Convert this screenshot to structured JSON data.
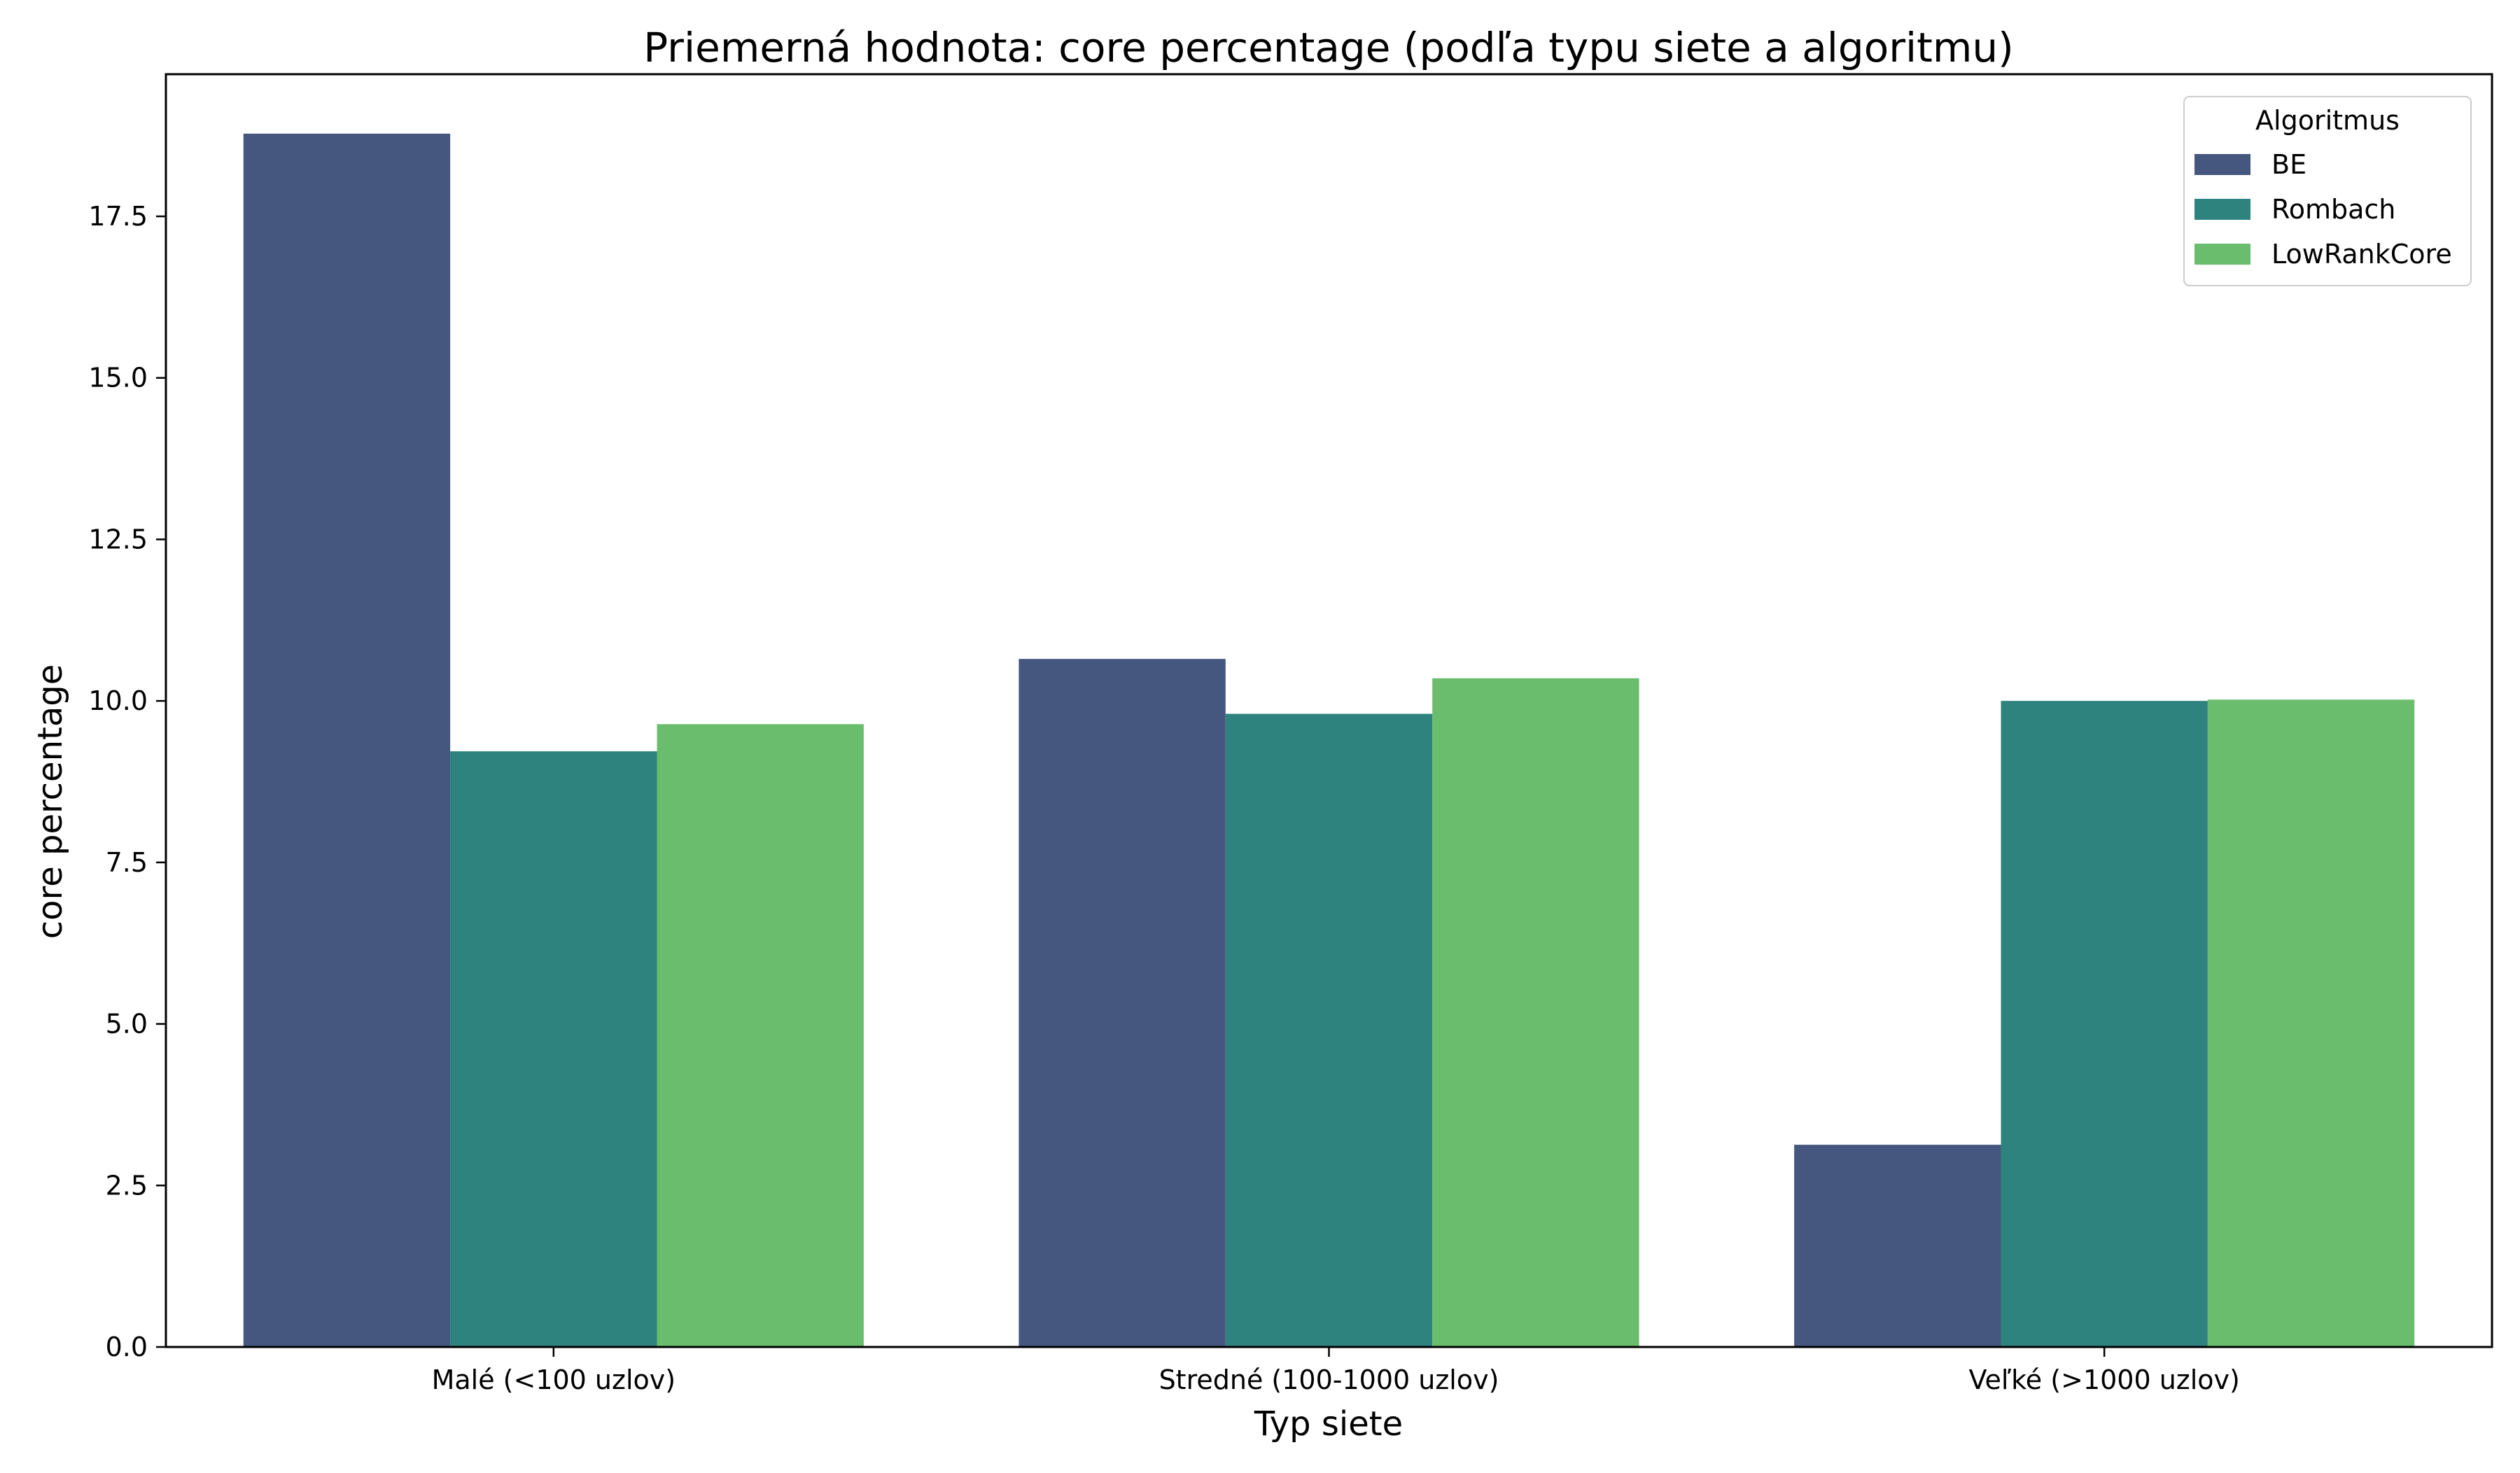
{
  "chart_data": {
    "type": "bar",
    "title": "Priemerná hodnota: core percentage (podľa typu siete a algoritmu)",
    "xlabel": "Typ siete",
    "ylabel": "core percentage",
    "categories": [
      "Malé (<100 uzlov)",
      "Stredné (100-1000 uzlov)",
      "Veľké (>1000 uzlov)"
    ],
    "series": [
      {
        "name": "BE",
        "color": "#45577e",
        "values": [
          18.78,
          10.65,
          3.13
        ]
      },
      {
        "name": "Rombach",
        "color": "#2e837e",
        "values": [
          9.22,
          9.8,
          10.0
        ]
      },
      {
        "name": "LowRankCore",
        "color": "#6abd6c",
        "values": [
          9.64,
          10.35,
          10.02
        ]
      }
    ],
    "ylim": [
      0,
      19.7
    ],
    "yticks": [
      0.0,
      2.5,
      5.0,
      7.5,
      10.0,
      12.5,
      15.0,
      17.5
    ],
    "ytick_labels": [
      "0.0",
      "2.5",
      "5.0",
      "7.5",
      "10.0",
      "12.5",
      "15.0",
      "17.5"
    ],
    "legend": {
      "title": "Algoritmus",
      "placement": "top-right"
    },
    "grid": false
  }
}
